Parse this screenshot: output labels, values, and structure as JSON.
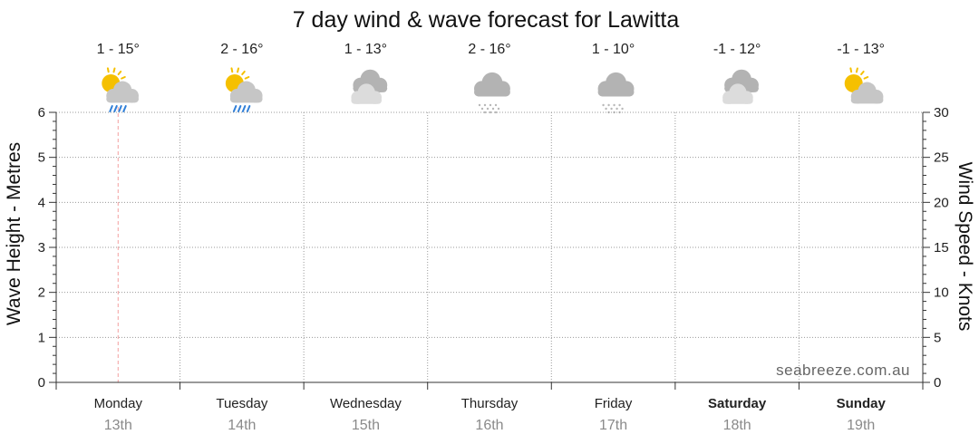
{
  "chart_data": {
    "type": "line",
    "title": "7 day wind & wave forecast for Lawitta",
    "ylabel_left": "Wave Height - Metres",
    "ylabel_right": "Wind Speed - Knots",
    "ylim_left": [
      0,
      6
    ],
    "ylim_right": [
      0,
      30
    ],
    "yticks_left": [
      "0",
      "1",
      "2",
      "3",
      "4",
      "5",
      "6"
    ],
    "yticks_right": [
      "0",
      "5",
      "10",
      "15",
      "20",
      "25",
      "30"
    ],
    "grid": true,
    "current_day_marker": "Monday",
    "days": [
      {
        "day": "Monday",
        "date": "13th",
        "temp": "1 - 15°",
        "icon": "partly-sunny-rain-icon",
        "bold": false
      },
      {
        "day": "Tuesday",
        "date": "14th",
        "temp": "2 - 16°",
        "icon": "partly-sunny-rain-icon",
        "bold": false
      },
      {
        "day": "Wednesday",
        "date": "15th",
        "temp": "1 - 13°",
        "icon": "cloudy-icon",
        "bold": false
      },
      {
        "day": "Thursday",
        "date": "16th",
        "temp": "2 - 16°",
        "icon": "cloud-snow-icon",
        "bold": false
      },
      {
        "day": "Friday",
        "date": "17th",
        "temp": "1 - 10°",
        "icon": "cloud-snow-icon",
        "bold": false
      },
      {
        "day": "Saturday",
        "date": "18th",
        "temp": "-1 - 12°",
        "icon": "cloudy-icon",
        "bold": true
      },
      {
        "day": "Sunday",
        "date": "19th",
        "temp": "-1 - 13°",
        "icon": "partly-sunny-icon",
        "bold": true
      }
    ],
    "series": []
  },
  "watermark": "seabreeze.com.au",
  "colors": {
    "sun": "#f5c000",
    "cloud": "#c6c6c6",
    "cloud_dark": "#b3b3b3",
    "rain": "#2f7fd8",
    "snow": "#b8b8b8",
    "grid": "#9a9a9a",
    "today_marker": "#f4a0a0"
  }
}
